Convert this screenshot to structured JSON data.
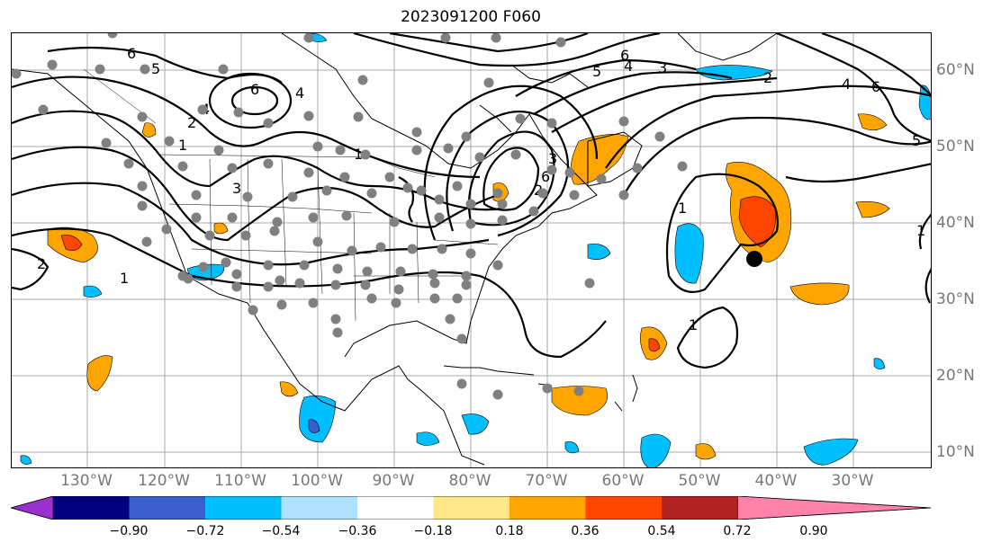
{
  "title": "2023091200 F060",
  "lon_labels": [
    "130°W",
    "120°W",
    "110°W",
    "100°W",
    "90°W",
    "80°W",
    "70°W",
    "60°W",
    "50°W",
    "40°W",
    "30°W"
  ],
  "lat_labels": [
    "60°N",
    "50°N",
    "40°N",
    "30°N",
    "20°N",
    "10°N"
  ],
  "colorbar": {
    "ticks": [
      "−0.90",
      "−0.72",
      "−0.54",
      "−0.36",
      "−0.18",
      "0.18",
      "0.36",
      "0.54",
      "0.72",
      "0.90"
    ],
    "colors": [
      "#9b30d0",
      "#000080",
      "#3a5fcd",
      "#00bfff",
      "#b0e2ff",
      "#ffffff",
      "#ffe78a",
      "#ffa500",
      "#ff4500",
      "#b22222",
      "#ff82ab"
    ]
  },
  "contour_labels": [
    "6",
    "5",
    "4",
    "3",
    "2",
    "1",
    "6",
    "4",
    "3",
    "2",
    "6",
    "5",
    "4",
    "3",
    "2",
    "1",
    "1",
    "1",
    "2",
    "1",
    "5",
    "6",
    "4",
    "6",
    "1"
  ],
  "marker_color": "#000000",
  "station_color": "#808080",
  "fill_colors": {
    "orange": "#ffa500",
    "red": "#ff4500",
    "lightblue": "#00bfff",
    "blue": "#3a5fcd",
    "yellow": "#ffe78a"
  }
}
